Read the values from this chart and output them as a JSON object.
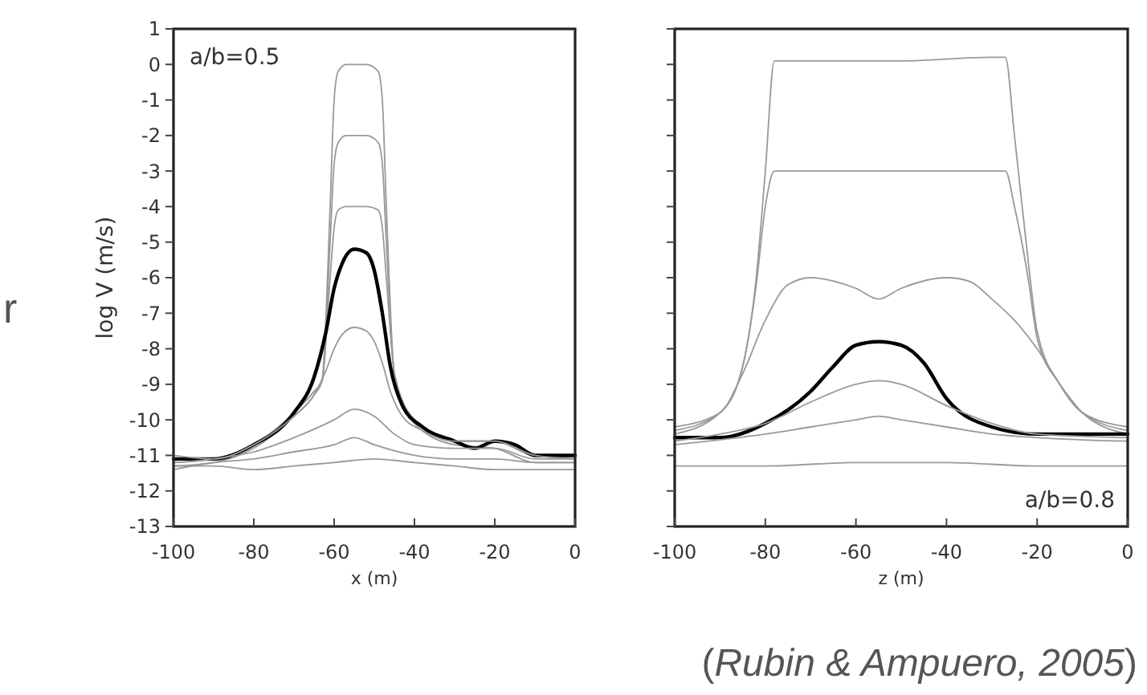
{
  "chart_data": [
    {
      "type": "line",
      "ylabel": "log V (m/s)",
      "xlabel": "x (m)",
      "annotations": [
        "a/b=0.5",
        "r"
      ],
      "xlim": [
        -100,
        0
      ],
      "xticks": [
        -100,
        -80,
        -60,
        -40,
        -20,
        0
      ],
      "ylim": [
        -13,
        1
      ],
      "yticks": [
        1,
        0,
        -1,
        -2,
        -3,
        -4,
        -5,
        -6,
        -7,
        -8,
        -9,
        -10,
        -11,
        -12,
        -13
      ],
      "series": [
        {
          "color": "#999999",
          "x": [
            -100,
            -90,
            -80,
            -70,
            -65,
            -63,
            -61,
            -60,
            -59,
            -57,
            -52,
            -49,
            -48,
            -47,
            -45,
            -40,
            -30,
            -20,
            -10,
            0
          ],
          "values": [
            -11.3,
            -11.2,
            -10.8,
            -9.9,
            -9.3,
            -8.9,
            -4,
            -1,
            -0.2,
            0,
            0,
            -0.2,
            -1,
            -4,
            -8.7,
            -10.1,
            -10.7,
            -10.8,
            -11.2,
            -11.2
          ]
        },
        {
          "color": "#999999",
          "x": [
            -100,
            -90,
            -80,
            -70,
            -65,
            -63,
            -61,
            -60,
            -59,
            -57,
            -52,
            -49,
            -48,
            -47,
            -45,
            -40,
            -30,
            -20,
            -10,
            0
          ],
          "values": [
            -11.1,
            -11.1,
            -10.7,
            -9.8,
            -9.2,
            -8.9,
            -5,
            -2.8,
            -2.2,
            -2,
            -2,
            -2.2,
            -2.8,
            -5,
            -8.7,
            -10,
            -10.6,
            -10.6,
            -11,
            -11.1
          ]
        },
        {
          "color": "#999999",
          "x": [
            -100,
            -90,
            -80,
            -70,
            -65,
            -63,
            -61,
            -60,
            -59,
            -57,
            -52,
            -49,
            -48,
            -47,
            -45,
            -40,
            -30,
            -20,
            -10,
            0
          ],
          "values": [
            -11.2,
            -11.1,
            -10.7,
            -9.8,
            -9.2,
            -8.9,
            -6,
            -4.6,
            -4.1,
            -4,
            -4,
            -4.1,
            -4.6,
            -6,
            -8.7,
            -10,
            -10.6,
            -10.6,
            -11,
            -11
          ]
        },
        {
          "color": "#000000",
          "x": [
            -100,
            -90,
            -80,
            -70,
            -65,
            -62,
            -60,
            -58,
            -55,
            -52,
            -50,
            -48,
            -46,
            -43,
            -38,
            -30,
            -25,
            -20,
            -15,
            -10,
            0
          ],
          "values": [
            -11.1,
            -11.1,
            -10.7,
            -9.8,
            -8.8,
            -7.5,
            -6.3,
            -5.6,
            -5.2,
            -5.3,
            -5.8,
            -7,
            -8.5,
            -9.6,
            -10.2,
            -10.6,
            -10.8,
            -10.6,
            -10.7,
            -11,
            -11
          ]
        },
        {
          "color": "#999999",
          "x": [
            -100,
            -90,
            -80,
            -70,
            -65,
            -62,
            -60,
            -58,
            -55,
            -52,
            -50,
            -48,
            -46,
            -43,
            -38,
            -30,
            -20,
            -10,
            0
          ],
          "values": [
            -11,
            -11.1,
            -10.7,
            -9.9,
            -9.3,
            -8.6,
            -8,
            -7.6,
            -7.4,
            -7.5,
            -7.8,
            -8.4,
            -9.2,
            -9.9,
            -10.3,
            -10.6,
            -10.6,
            -11,
            -11.1
          ]
        },
        {
          "color": "#999999",
          "x": [
            -100,
            -90,
            -80,
            -70,
            -60,
            -55,
            -50,
            -45,
            -40,
            -30,
            -20,
            -10,
            0
          ],
          "values": [
            -11.2,
            -11.1,
            -10.9,
            -10.5,
            -10,
            -9.7,
            -9.9,
            -10.4,
            -10.7,
            -10.8,
            -10.8,
            -11.1,
            -11.1
          ]
        },
        {
          "color": "#999999",
          "x": [
            -100,
            -90,
            -80,
            -70,
            -60,
            -55,
            -50,
            -40,
            -30,
            -20,
            -10,
            0
          ],
          "values": [
            -11.4,
            -11.2,
            -11.1,
            -10.9,
            -10.7,
            -10.5,
            -10.7,
            -11,
            -11.1,
            -11.1,
            -11.2,
            -11.2
          ]
        },
        {
          "color": "#999999",
          "x": [
            -100,
            -90,
            -80,
            -70,
            -60,
            -50,
            -40,
            -30,
            -20,
            -10,
            0
          ],
          "values": [
            -11.3,
            -11.3,
            -11.4,
            -11.3,
            -11.2,
            -11.1,
            -11.2,
            -11.3,
            -11.4,
            -11.4,
            -11.4
          ]
        }
      ]
    },
    {
      "type": "line",
      "xlabel": "z (m)",
      "annotations": [
        "a/b=0.8",
        "(Rubin & Ampuero, 2005)"
      ],
      "tick_labels": "x",
      "xlim": [
        -100,
        0
      ],
      "xticks": [
        -100,
        -80,
        -60,
        -40,
        -20,
        0
      ],
      "ylim": [
        -13,
        1
      ],
      "yticks": [
        1,
        0,
        -1,
        -2,
        -3,
        -4,
        -5,
        -6,
        -7,
        -8,
        -9,
        -10,
        -11,
        -12,
        -13
      ],
      "series": [
        {
          "color": "#999999",
          "x": [
            -100,
            -90,
            -85,
            -82,
            -80,
            -78,
            -70,
            -50,
            -30,
            -27,
            -25,
            -22,
            -20,
            -15,
            -10,
            0
          ],
          "values": [
            -10.3,
            -9.8,
            -8.5,
            -6,
            -3,
            0.1,
            0.1,
            0.1,
            0.2,
            0.2,
            -2,
            -5.5,
            -7.5,
            -9,
            -9.8,
            -10.3
          ]
        },
        {
          "color": "#999999",
          "x": [
            -100,
            -90,
            -85,
            -82,
            -80,
            -78,
            -70,
            -50,
            -30,
            -27,
            -25,
            -22,
            -20,
            -15,
            -10,
            0
          ],
          "values": [
            -10.4,
            -9.8,
            -8.5,
            -6.2,
            -4,
            -3,
            -3,
            -3,
            -3,
            -3,
            -4,
            -6,
            -7.7,
            -9,
            -9.8,
            -10.2
          ]
        },
        {
          "color": "#999999",
          "x": [
            -100,
            -90,
            -85,
            -80,
            -75,
            -70,
            -60,
            -55,
            -50,
            -40,
            -35,
            -30,
            -25,
            -20,
            -15,
            -10,
            0
          ],
          "values": [
            -10.2,
            -9.8,
            -8.7,
            -7.2,
            -6.2,
            -6,
            -6.3,
            -6.6,
            -6.3,
            -6,
            -6.1,
            -6.6,
            -7.2,
            -8,
            -9,
            -9.8,
            -10.4
          ]
        },
        {
          "color": "#000000",
          "x": [
            -100,
            -90,
            -80,
            -70,
            -65,
            -60,
            -55,
            -50,
            -45,
            -40,
            -30,
            -20,
            0
          ],
          "values": [
            -10.5,
            -10.5,
            -10.1,
            -9.2,
            -8.5,
            -7.9,
            -7.8,
            -7.9,
            -8.4,
            -9.4,
            -10.2,
            -10.4,
            -10.4
          ]
        },
        {
          "color": "#999999",
          "x": [
            -100,
            -90,
            -80,
            -70,
            -60,
            -55,
            -50,
            -40,
            -30,
            -20,
            0
          ],
          "values": [
            -10.6,
            -10.4,
            -10.1,
            -9.5,
            -9,
            -8.9,
            -9,
            -9.6,
            -10.1,
            -10.4,
            -10.5
          ]
        },
        {
          "color": "#999999",
          "x": [
            -100,
            -80,
            -70,
            -60,
            -55,
            -50,
            -40,
            -30,
            -20,
            0
          ],
          "values": [
            -10.7,
            -10.4,
            -10.2,
            -10,
            -9.9,
            -10,
            -10.2,
            -10.4,
            -10.5,
            -10.6
          ]
        },
        {
          "color": "#999999",
          "x": [
            -100,
            -80,
            -60,
            -40,
            -20,
            0
          ],
          "values": [
            -11.3,
            -11.3,
            -11.2,
            -11.2,
            -11.3,
            -11.3
          ]
        }
      ]
    }
  ]
}
